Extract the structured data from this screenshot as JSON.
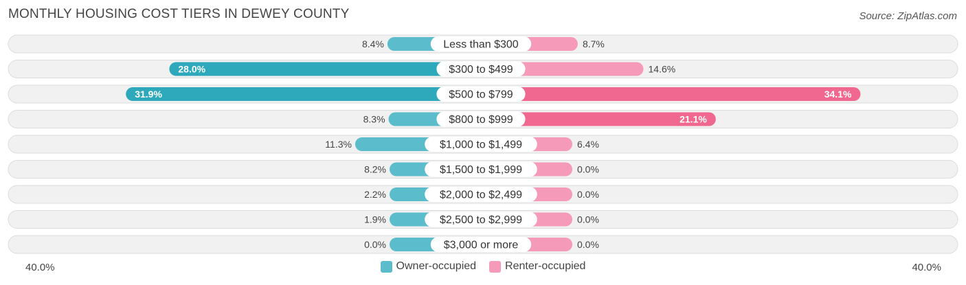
{
  "title": "MONTHLY HOUSING COST TIERS IN DEWEY COUNTY",
  "source": "Source: ZipAtlas.com",
  "colors": {
    "owner": "#5bbccb",
    "owner_strong": "#2ea8bb",
    "renter": "#f59ab8",
    "renter_strong": "#f0678f"
  },
  "axis": {
    "left_label": "40.0%",
    "right_label": "40.0%"
  },
  "legend": {
    "owner_label": "Owner-occupied",
    "renter_label": "Renter-occupied"
  },
  "chart_data": {
    "type": "bar",
    "orientation": "horizontal-diverging",
    "title": "MONTHLY HOUSING COST TIERS IN DEWEY COUNTY",
    "xlim": [
      -40,
      40
    ],
    "categories": [
      "Less than $300",
      "$300 to $499",
      "$500 to $799",
      "$800 to $999",
      "$1,000 to $1,499",
      "$1,500 to $1,999",
      "$2,000 to $2,499",
      "$2,500 to $2,999",
      "$3,000 or more"
    ],
    "series": [
      {
        "name": "Owner-occupied",
        "values": [
          8.4,
          28.0,
          31.9,
          8.3,
          11.3,
          8.2,
          2.2,
          1.9,
          0.0
        ],
        "labels": [
          "8.4%",
          "28.0%",
          "31.9%",
          "8.3%",
          "11.3%",
          "8.2%",
          "2.2%",
          "1.9%",
          "0.0%"
        ]
      },
      {
        "name": "Renter-occupied",
        "values": [
          8.7,
          14.6,
          34.1,
          21.1,
          6.4,
          0.0,
          0.0,
          0.0,
          0.0
        ],
        "labels": [
          "8.7%",
          "14.6%",
          "34.1%",
          "21.1%",
          "6.4%",
          "0.0%",
          "0.0%",
          "0.0%",
          "0.0%"
        ]
      }
    ]
  }
}
